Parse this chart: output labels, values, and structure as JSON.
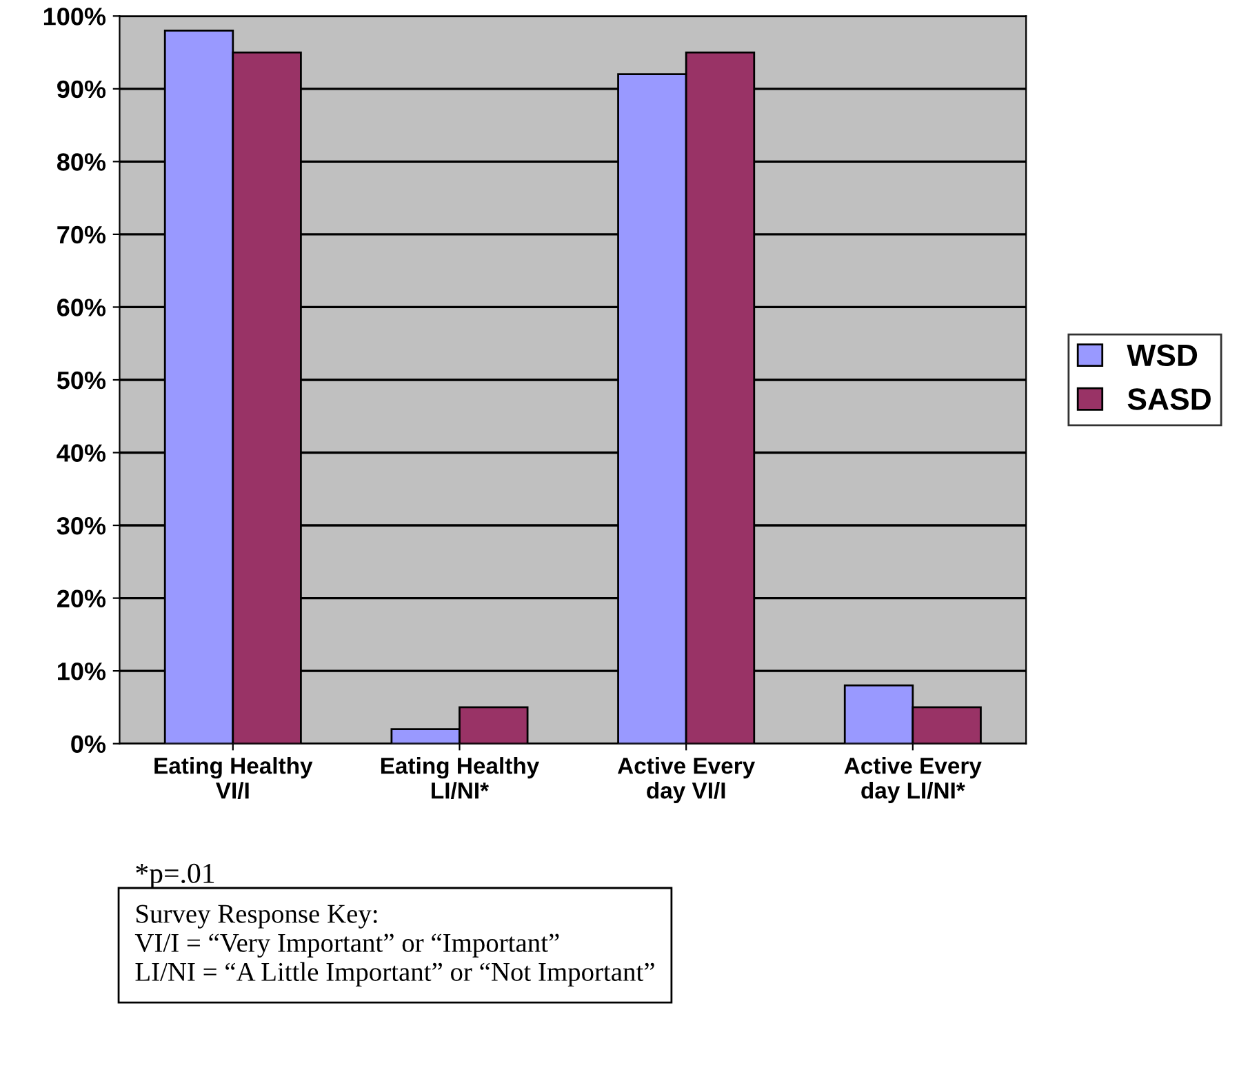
{
  "chart_data": {
    "type": "bar",
    "categories": [
      "Eating Healthy\nVI/I",
      "Eating Healthy\nLI/NI*",
      "Active Every\nday VI/I",
      "Active Every\nday LI/NI*"
    ],
    "series": [
      {
        "name": "WSD",
        "color": "#9999ff",
        "values": [
          98,
          2,
          92,
          8
        ]
      },
      {
        "name": "SASD",
        "color": "#993366",
        "values": [
          95,
          5,
          95,
          5
        ]
      }
    ],
    "ylim": [
      0,
      100
    ],
    "yticks": [
      {
        "value": 0,
        "label": "0%"
      },
      {
        "value": 10,
        "label": "10%"
      },
      {
        "value": 20,
        "label": "20%"
      },
      {
        "value": 30,
        "label": "30%"
      },
      {
        "value": 40,
        "label": "40%"
      },
      {
        "value": 50,
        "label": "50%"
      },
      {
        "value": 60,
        "label": "60%"
      },
      {
        "value": 70,
        "label": "70%"
      },
      {
        "value": 80,
        "label": "80%"
      },
      {
        "value": 90,
        "label": "90%"
      },
      {
        "value": 100,
        "label": "100%"
      }
    ],
    "grid": "y",
    "legend": "right",
    "annotations": [
      "*p=.01",
      "Survey Response Key:\nVI/I = “Very Important” or “Important”\nLI/NI = “A Little Important” or “Not Important”"
    ]
  }
}
